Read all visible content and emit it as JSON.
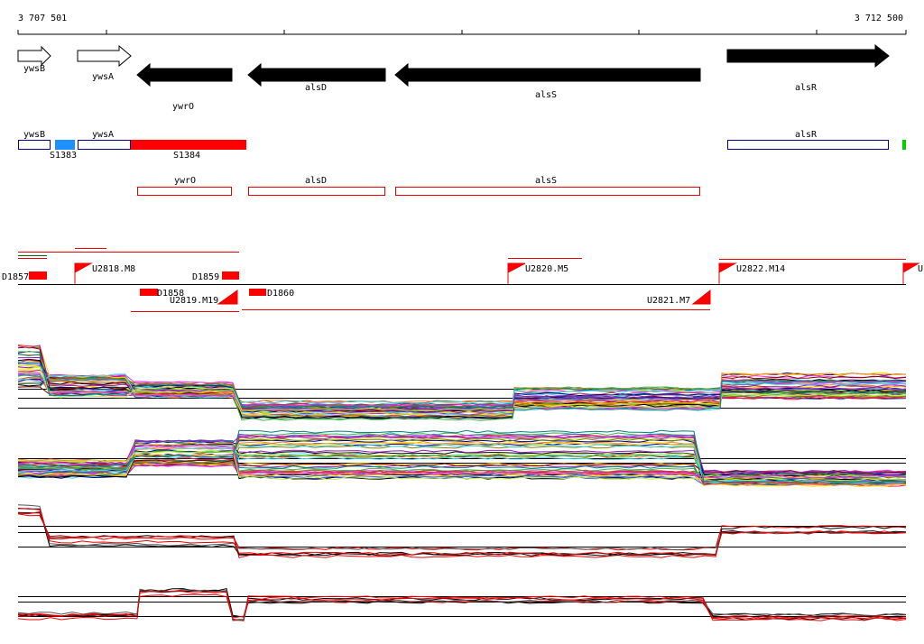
{
  "ruler": {
    "start": "3 707 501",
    "end": "3 712 500"
  },
  "genes": [
    {
      "label": "ywsB"
    },
    {
      "label": "ywsA"
    },
    {
      "label": "ywrO"
    },
    {
      "label": "alsD"
    },
    {
      "label": "alsS"
    },
    {
      "label": "alsR"
    }
  ],
  "annotations": [
    {
      "label": "ywsB"
    },
    {
      "label": "S1383"
    },
    {
      "label": "ywsA"
    },
    {
      "label": "S1384"
    },
    {
      "label": "alsR"
    }
  ],
  "transcripts": [
    {
      "label": "ywrO"
    },
    {
      "label": "alsD"
    },
    {
      "label": "alsS"
    }
  ],
  "features": [
    {
      "label": "D1857"
    },
    {
      "label": "U2818.M8"
    },
    {
      "label": "D1859"
    },
    {
      "label": "D1858"
    },
    {
      "label": "U2819.M19"
    },
    {
      "label": "D1860"
    },
    {
      "label": "U2820.M5"
    },
    {
      "label": "U2821.M7"
    },
    {
      "label": "U2822.M14"
    },
    {
      "label": "U"
    }
  ]
}
